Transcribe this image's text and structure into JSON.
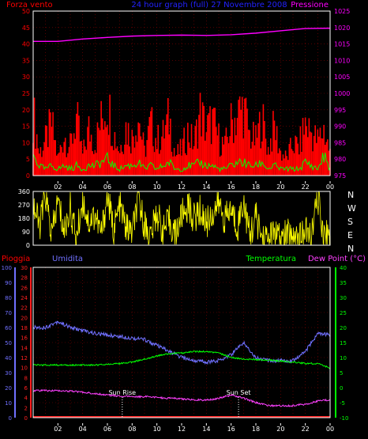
{
  "header": {
    "left_label": "Forza vento",
    "center_label": "24 hour graph (full)  27 Novembre 2008",
    "right_label": "Pressione"
  },
  "compass": {
    "letters": [
      "N",
      "W",
      "S",
      "E",
      "N"
    ]
  },
  "lower_header": {
    "rain_label": "Pioggia",
    "humidity_label": "Umidita",
    "temperature_label": "Temperatura",
    "dew_label": "Dew Point (°C)"
  },
  "annotations": {
    "sunrise": "Sun Rise",
    "sunset": "Sun Set"
  },
  "colors": {
    "wind": "#ff0000",
    "wind_avg": "#00ff00",
    "pressure": "#ff00ff",
    "direction": "#ffff00",
    "humidity": "#7070ff",
    "temperature": "#00ff00",
    "dewpoint": "#ff40ff",
    "rain": "#ff2020",
    "grid": "#8b0000",
    "frame": "#ffffff"
  },
  "chart_data": [
    {
      "type": "area",
      "x_ticks": [
        "02",
        "04",
        "06",
        "08",
        "10",
        "12",
        "14",
        "16",
        "18",
        "20",
        "22",
        "00"
      ],
      "y_ticks": [
        "0",
        "5",
        "10",
        "15",
        "20",
        "25",
        "30",
        "35",
        "40",
        "45",
        "50"
      ],
      "y2_ticks": [
        "975",
        "980",
        "985",
        "990",
        "995",
        "1000",
        "1005",
        "1010",
        "1015",
        "1020",
        "1025"
      ],
      "ylim": [
        0,
        50
      ],
      "y2lim": [
        975,
        1025
      ],
      "pressure_hours": [
        0,
        2,
        4,
        6,
        8,
        10,
        12,
        14,
        16,
        18,
        20,
        22,
        24
      ],
      "pressure": [
        1015.8,
        1015.8,
        1016.5,
        1017.0,
        1017.4,
        1017.6,
        1017.7,
        1017.6,
        1017.8,
        1018.3,
        1019.0,
        1019.7,
        1019.8
      ],
      "wind_hours": [
        0,
        0.5,
        1,
        1.5,
        2,
        2.5,
        3,
        3.5,
        4,
        4.5,
        5,
        5.5,
        6,
        6.5,
        7,
        7.5,
        8,
        8.5,
        9,
        9.5,
        10,
        10.5,
        11,
        11.5,
        12,
        12.5,
        13,
        13.5,
        14,
        14.5,
        15,
        15.5,
        16,
        16.5,
        17,
        17.5,
        18,
        18.5,
        19,
        19.5,
        20,
        20.5,
        21,
        21.5,
        22,
        22.5,
        23,
        23.5,
        24
      ],
      "wind_gust": [
        22,
        8,
        12,
        18,
        6,
        14,
        10,
        20,
        7,
        16,
        11,
        19,
        26,
        15,
        9,
        17,
        13,
        21,
        8,
        18,
        12,
        14,
        20,
        7,
        9,
        15,
        11,
        22,
        16,
        19,
        13,
        10,
        18,
        21,
        24,
        14,
        12,
        20,
        9,
        17,
        8,
        6,
        11,
        10,
        18,
        15,
        12,
        16,
        8
      ],
      "wind_avg": [
        6,
        3,
        2,
        3,
        2,
        3,
        2,
        3,
        2,
        3,
        3,
        4,
        5,
        3,
        2,
        3,
        3,
        4,
        2,
        3,
        2,
        3,
        4,
        2,
        2,
        3,
        3,
        4,
        3,
        3,
        2,
        2,
        3,
        4,
        4,
        3,
        3,
        4,
        2,
        3,
        2,
        2,
        2,
        2,
        4,
        3,
        2,
        6,
        2
      ]
    },
    {
      "type": "line",
      "x_ticks": [
        "02",
        "04",
        "06",
        "08",
        "10",
        "12",
        "14",
        "16",
        "18",
        "20",
        "22",
        "00"
      ],
      "y_ticks": [
        "0",
        "90",
        "180",
        "270",
        "360"
      ],
      "ylim": [
        0,
        360
      ],
      "direction_hours": [
        0,
        0.5,
        1,
        1.5,
        2,
        2.5,
        3,
        3.5,
        4,
        4.5,
        5,
        5.5,
        6,
        6.5,
        7,
        7.5,
        8,
        8.5,
        9,
        9.5,
        10,
        10.5,
        11,
        11.5,
        12,
        12.5,
        13,
        13.5,
        14,
        14.5,
        15,
        15.5,
        16,
        16.5,
        17,
        17.5,
        18,
        18.5,
        19,
        19.5,
        20,
        20.5,
        21,
        21.5,
        22,
        22.5,
        23,
        23.5,
        24
      ],
      "direction": [
        280,
        120,
        330,
        60,
        300,
        90,
        250,
        40,
        310,
        150,
        210,
        70,
        330,
        100,
        260,
        120,
        80,
        300,
        140,
        60,
        220,
        90,
        160,
        70,
        200,
        260,
        180,
        230,
        150,
        210,
        280,
        170,
        240,
        120,
        300,
        60,
        190,
        50,
        40,
        80,
        30,
        70,
        60,
        40,
        90,
        50,
        330,
        60,
        80
      ]
    },
    {
      "type": "line",
      "x_ticks": [
        "02",
        "04",
        "06",
        "08",
        "10",
        "12",
        "14",
        "16",
        "18",
        "20",
        "22",
        "00"
      ],
      "y_ticks_rain": [
        "0",
        "2",
        "4",
        "6",
        "8",
        "10",
        "12",
        "14",
        "16",
        "18",
        "20",
        "22",
        "24",
        "26",
        "28",
        "30"
      ],
      "y_ticks_humidity": [
        "0",
        "10",
        "20",
        "30",
        "40",
        "50",
        "60",
        "70",
        "80",
        "90",
        "100"
      ],
      "y_ticks_temperature": [
        "-10",
        "-5",
        "0",
        "5",
        "10",
        "15",
        "20",
        "25",
        "30",
        "35",
        "40"
      ],
      "rain_ylim": [
        0,
        30
      ],
      "humidity_ylim": [
        0,
        100
      ],
      "temperature_ylim": [
        -10,
        40
      ],
      "hours": [
        0,
        1,
        2,
        3,
        4,
        5,
        6,
        7,
        8,
        9,
        10,
        11,
        12,
        13,
        14,
        15,
        16,
        17,
        18,
        19,
        20,
        21,
        22,
        23,
        24
      ],
      "humidity": [
        60,
        60,
        64,
        60,
        58,
        56,
        55,
        54,
        53,
        52,
        48,
        44,
        40,
        38,
        37,
        38,
        42,
        50,
        40,
        38,
        38,
        38,
        44,
        56,
        55
      ],
      "temperature": [
        7.5,
        7.5,
        7.5,
        7.5,
        7.5,
        7.5,
        7.8,
        8,
        8.5,
        9.5,
        10.5,
        11.3,
        11.5,
        12,
        12,
        11.5,
        10,
        9.5,
        9.3,
        9.2,
        8.8,
        8.5,
        8,
        8,
        6.5
      ],
      "dewpoint": [
        -1,
        -1,
        -1,
        -1.2,
        -1.5,
        -2,
        -2.5,
        -2.8,
        -3,
        -3,
        -3.3,
        -3.5,
        -3.8,
        -4,
        -4.2,
        -3.5,
        -2.5,
        -3.5,
        -5,
        -6,
        -6,
        -6,
        -5.5,
        -4.5,
        -4
      ],
      "rain": [
        0,
        0,
        0,
        0,
        0,
        0,
        0,
        0,
        0,
        0,
        0,
        0,
        0,
        0,
        0,
        0,
        0,
        0,
        0,
        0,
        0,
        0,
        0,
        0,
        0
      ],
      "sunrise_hour": 7.2,
      "sunset_hour": 16.6
    }
  ]
}
